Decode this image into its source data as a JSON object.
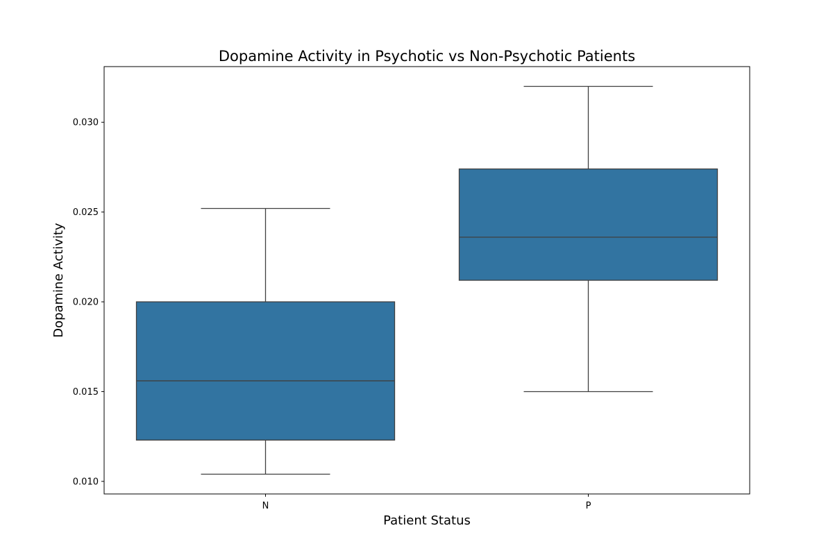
{
  "chart_data": {
    "type": "box",
    "title": "Dopamine Activity in Psychotic vs Non-Psychotic Patients",
    "xlabel": "Patient Status",
    "ylabel": "Dopamine Activity",
    "categories": [
      "N",
      "P"
    ],
    "ylim": [
      0.0093,
      0.0331
    ],
    "yticks": [
      0.01,
      0.015,
      0.02,
      0.025,
      0.03
    ],
    "ytick_labels": [
      "0.010",
      "0.015",
      "0.020",
      "0.025",
      "0.030"
    ],
    "boxes": [
      {
        "category": "N",
        "whisker_low": 0.0104,
        "q1": 0.0123,
        "median": 0.0156,
        "q3": 0.02,
        "whisker_high": 0.0252
      },
      {
        "category": "P",
        "whisker_low": 0.015,
        "q1": 0.0212,
        "median": 0.0236,
        "q3": 0.0274,
        "whisker_high": 0.032
      }
    ],
    "grid": false,
    "box_color": "#3274a1",
    "line_color": "#3f3f3f"
  }
}
